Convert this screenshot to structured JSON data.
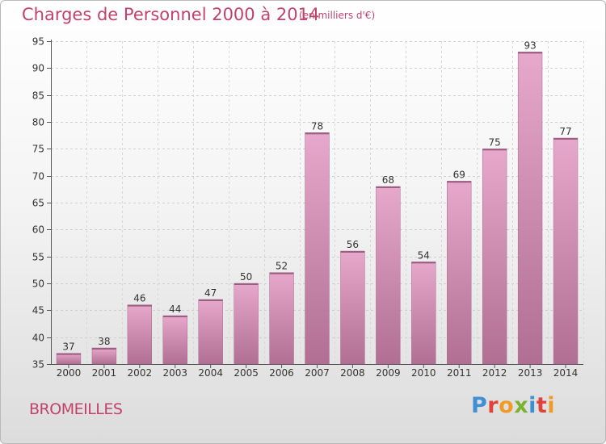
{
  "header": {
    "title": "Charges de Personnel 2000 à 2014",
    "subtitle": "(en milliers d'€)"
  },
  "footer": {
    "place": "BROMEILLES",
    "logo": "Proxiti",
    "logo_colors": [
      "#3d8fd6",
      "#e0413b",
      "#f09a2a",
      "#7ab32e",
      "#3d8fd6",
      "#e0413b",
      "#f09a2a"
    ]
  },
  "colors": {
    "bar_top": "#e6a8cb",
    "bar_bottom": "#b06f93",
    "text_accent": "#c2426b"
  },
  "chart_data": {
    "type": "bar",
    "categories": [
      "2000",
      "2001",
      "2002",
      "2003",
      "2004",
      "2005",
      "2006",
      "2007",
      "2008",
      "2009",
      "2010",
      "2011",
      "2012",
      "2013",
      "2014"
    ],
    "values": [
      37,
      38,
      46,
      44,
      47,
      50,
      52,
      78,
      56,
      68,
      54,
      69,
      75,
      93,
      77
    ],
    "ylim": [
      35,
      95
    ],
    "yticks": [
      35,
      40,
      45,
      50,
      55,
      60,
      65,
      70,
      75,
      80,
      85,
      90,
      95
    ],
    "grid": true
  }
}
